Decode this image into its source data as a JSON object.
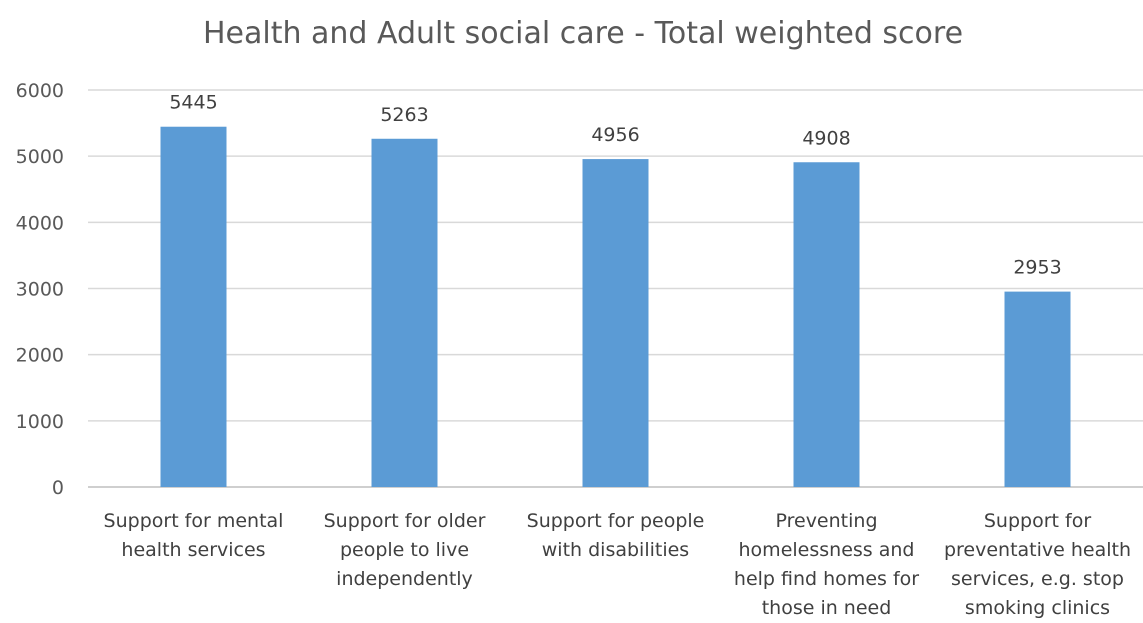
{
  "chart_data": {
    "type": "bar",
    "title": "Health and Adult social care - Total weighted score",
    "xlabel": "",
    "ylabel": "",
    "categories": [
      [
        "Support for mental",
        "health services"
      ],
      [
        "Support for older",
        "people to live",
        "independently"
      ],
      [
        "Support for people",
        "with disabilities"
      ],
      [
        "Preventing",
        "homelessness and",
        "help find homes for",
        "those in need"
      ],
      [
        "Support for",
        "preventative health",
        "services, e.g. stop",
        "smoking clinics"
      ]
    ],
    "values": [
      5445,
      5263,
      4956,
      4908,
      2953
    ],
    "ylim": [
      0,
      6000
    ],
    "yticks": [
      0,
      1000,
      2000,
      3000,
      4000,
      5000,
      6000
    ],
    "grid": true,
    "legend": "none",
    "bar_color": "#5b9bd5"
  }
}
